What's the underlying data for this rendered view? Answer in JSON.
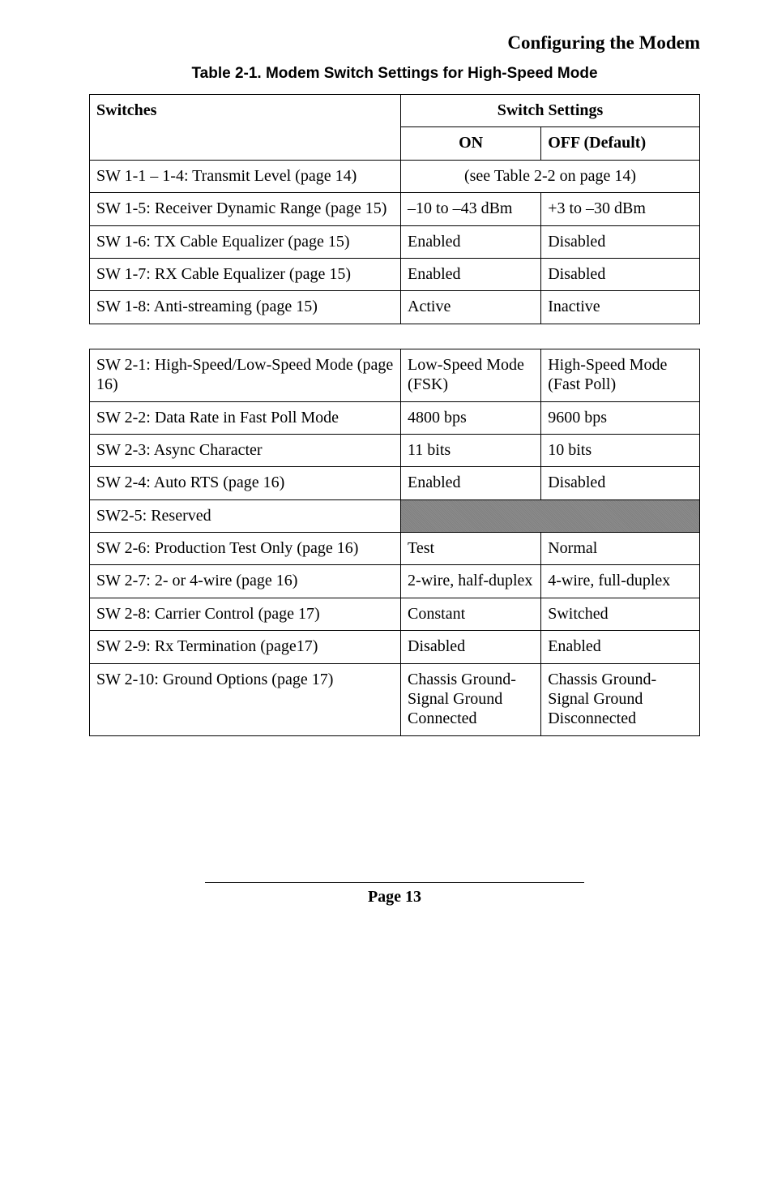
{
  "page": {
    "section_title": "Configuring the Modem",
    "table_caption": "Table 2-1. Modem Switch Settings for High-Speed Mode",
    "page_number": "Page 13"
  },
  "table1": {
    "headers": {
      "switches": "Switches",
      "switch_settings": "Switch Settings",
      "on": "ON",
      "off": "OFF (Default)"
    },
    "rows": [
      {
        "label": "SW 1-1 – 1-4: Transmit Level (page 14)",
        "span_text": "(see Table 2-2 on page 14)"
      },
      {
        "label": "SW 1-5: Receiver Dynamic Range (page 15)",
        "on": "–10 to –43 dBm",
        "off": "+3 to –30 dBm"
      },
      {
        "label": "SW 1-6: TX Cable Equalizer (page 15)",
        "on": "Enabled",
        "off": "Disabled"
      },
      {
        "label": "SW 1-7: RX Cable Equalizer (page 15)",
        "on": "Enabled",
        "off": "Disabled"
      },
      {
        "label": "SW 1-8: Anti-streaming (page 15)",
        "on": "Active",
        "off": "Inactive"
      }
    ]
  },
  "table2": {
    "rows": [
      {
        "label": "SW 2-1: High-Speed/Low-Speed Mode (page 16)",
        "on": "Low-Speed Mode (FSK)",
        "off": "High-Speed Mode (Fast Poll)"
      },
      {
        "label": "SW 2-2: Data Rate in Fast Poll Mode",
        "on": "4800 bps",
        "off": "9600 bps"
      },
      {
        "label": "SW 2-3: Async Character",
        "on": "11 bits",
        "off": "10 bits"
      },
      {
        "label": "SW 2-4: Auto RTS (page 16)",
        "on": "Enabled",
        "off": "Disabled"
      },
      {
        "label": "SW2-5: Reserved"
      },
      {
        "label": "SW 2-6: Production Test Only (page 16)",
        "on": "Test",
        "off": "Normal"
      },
      {
        "label": "SW 2-7: 2- or 4-wire (page 16)",
        "on": "2-wire, half-duplex",
        "off": "4-wire, full-duplex"
      },
      {
        "label": "SW 2-8: Carrier Control (page 17)",
        "on": "Constant",
        "off": "Switched"
      },
      {
        "label": "SW 2-9: Rx Termination (page17)",
        "on": "Disabled",
        "off": "Enabled"
      },
      {
        "label": "SW 2-10: Ground Options (page 17)",
        "on": "Chassis Ground-Signal Ground Connected",
        "off": "Chassis Ground-Signal Ground Disconnected"
      }
    ]
  }
}
